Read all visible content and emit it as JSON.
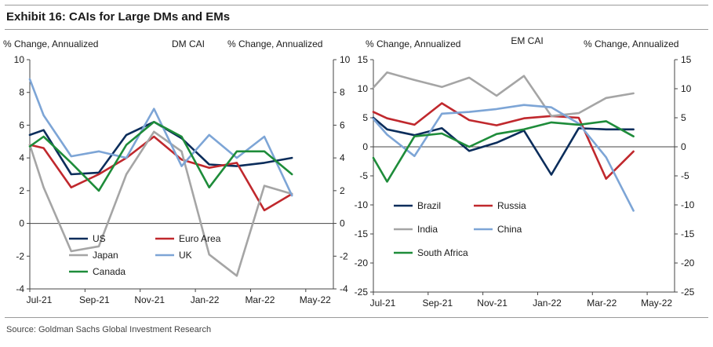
{
  "exhibit": {
    "title": "Exhibit 16: CAIs for Large DMs and EMs",
    "source": "Source: Goldman Sachs Global Investment Research"
  },
  "chart_data": [
    {
      "type": "line",
      "title": "DM CAI",
      "ylabel_left": "% Change, Annualized",
      "ylabel_right": "% Change, Annualized",
      "ylim": [
        -4,
        10
      ],
      "yticks": [
        -4,
        -2,
        0,
        2,
        4,
        6,
        8,
        10
      ],
      "ytick_labels": [
        "-4",
        "-2",
        "0",
        "2",
        "4",
        "6",
        "8",
        "10"
      ],
      "xlim": [
        0,
        11
      ],
      "xticks": [
        0,
        2,
        4,
        6,
        8,
        10
      ],
      "xtick_labels": [
        "Jul-21",
        "Sep-21",
        "Nov-21",
        "Jan-22",
        "Mar-22",
        "May-22"
      ],
      "legend_columns": 2,
      "series": [
        {
          "name": "US",
          "color": "#0b2d5b",
          "x": [
            0,
            0.5,
            1.5,
            2.5,
            3.5,
            4.5,
            5.5,
            6.5,
            7.5,
            8.5,
            9.5
          ],
          "values": [
            5.4,
            5.7,
            3.0,
            3.1,
            5.4,
            6.2,
            5.2,
            3.6,
            3.5,
            3.7,
            4.0
          ]
        },
        {
          "name": "Euro Area",
          "color": "#c0282d",
          "x": [
            0,
            0.5,
            1.5,
            2.5,
            3.5,
            4.5,
            5.5,
            6.5,
            7.5,
            8.5,
            9.5
          ],
          "values": [
            4.8,
            4.6,
            2.2,
            3.0,
            4.0,
            5.3,
            3.9,
            3.4,
            3.7,
            0.8,
            1.8
          ]
        },
        {
          "name": "Japan",
          "color": "#a5a5a5",
          "x": [
            0,
            0.5,
            1.5,
            2.5,
            3.5,
            4.5,
            5.5,
            6.5,
            7.5,
            8.5,
            9.5
          ],
          "values": [
            4.8,
            2.2,
            -1.7,
            -1.4,
            3.0,
            5.6,
            4.4,
            -1.9,
            -3.2,
            2.3,
            1.8
          ]
        },
        {
          "name": "UK",
          "color": "#7da5d6",
          "x": [
            0,
            0.5,
            1.5,
            2.5,
            3.5,
            4.5,
            5.5,
            6.5,
            7.5,
            8.5,
            9.5
          ],
          "values": [
            8.8,
            6.6,
            4.1,
            4.4,
            4.0,
            7.0,
            3.5,
            5.4,
            4.0,
            5.3,
            1.7
          ]
        },
        {
          "name": "Canada",
          "color": "#1e8c3a",
          "x": [
            0,
            0.5,
            1.5,
            2.5,
            3.5,
            4.5,
            5.5,
            6.5,
            7.5,
            8.5,
            9.5
          ],
          "values": [
            4.7,
            5.3,
            3.7,
            2.0,
            4.8,
            6.2,
            5.3,
            2.2,
            4.4,
            4.4,
            3.0
          ]
        }
      ]
    },
    {
      "type": "line",
      "title": "EM CAI",
      "ylabel_left": "% Change, Annualized",
      "ylabel_right": "% Change, Annualized",
      "ylim": [
        -25,
        15
      ],
      "yticks": [
        -25,
        -20,
        -15,
        -10,
        -5,
        0,
        5,
        10,
        15
      ],
      "ytick_labels": [
        "-25",
        "-20",
        "-15",
        "-10",
        "-5",
        "0",
        "5",
        "10",
        "15"
      ],
      "xlim": [
        0,
        11
      ],
      "xticks": [
        0,
        2,
        4,
        6,
        8,
        10
      ],
      "xtick_labels": [
        "Jul-21",
        "Sep-21",
        "Nov-21",
        "Jan-22",
        "Mar-22",
        "May-22"
      ],
      "legend_columns": 2,
      "series": [
        {
          "name": "Brazil",
          "color": "#0b2d5b",
          "x": [
            0,
            0.5,
            1.5,
            2.5,
            3.5,
            4.5,
            5.5,
            6.5,
            7.5,
            8.5,
            9.5
          ],
          "values": [
            5.0,
            3.0,
            2.0,
            3.2,
            -0.7,
            0.7,
            2.8,
            -4.8,
            3.2,
            3.0,
            3.0
          ]
        },
        {
          "name": "Russia",
          "color": "#c0282d",
          "x": [
            0,
            0.5,
            1.5,
            2.5,
            3.5,
            4.5,
            5.5,
            6.5,
            7.5,
            8.5,
            9.5
          ],
          "values": [
            6.0,
            4.9,
            3.8,
            7.5,
            4.6,
            3.7,
            4.9,
            5.3,
            5.0,
            -5.5,
            -0.8
          ]
        },
        {
          "name": "India",
          "color": "#a5a5a5",
          "x": [
            0,
            0.5,
            1.5,
            2.5,
            3.5,
            4.5,
            5.5,
            6.5,
            7.5,
            8.5,
            9.5
          ],
          "values": [
            10.2,
            12.8,
            11.5,
            10.3,
            11.9,
            8.8,
            12.2,
            5.3,
            5.8,
            8.4,
            9.2
          ]
        },
        {
          "name": "China",
          "color": "#7da5d6",
          "x": [
            0,
            0.5,
            1.5,
            2.5,
            3.5,
            4.5,
            5.5,
            6.5,
            7.5,
            8.5,
            9.5
          ],
          "values": [
            4.8,
            2.1,
            -1.6,
            5.7,
            6.0,
            6.5,
            7.2,
            6.8,
            4.0,
            -1.8,
            -11.0
          ]
        },
        {
          "name": "South Africa",
          "color": "#1e8c3a",
          "x": [
            0,
            0.5,
            1.5,
            2.5,
            3.5,
            4.5,
            5.5,
            6.5,
            7.5,
            8.5,
            9.5
          ],
          "values": [
            -1.9,
            -6.0,
            1.8,
            2.3,
            0.0,
            2.2,
            3.0,
            4.2,
            3.8,
            4.4,
            1.8
          ]
        }
      ]
    }
  ]
}
